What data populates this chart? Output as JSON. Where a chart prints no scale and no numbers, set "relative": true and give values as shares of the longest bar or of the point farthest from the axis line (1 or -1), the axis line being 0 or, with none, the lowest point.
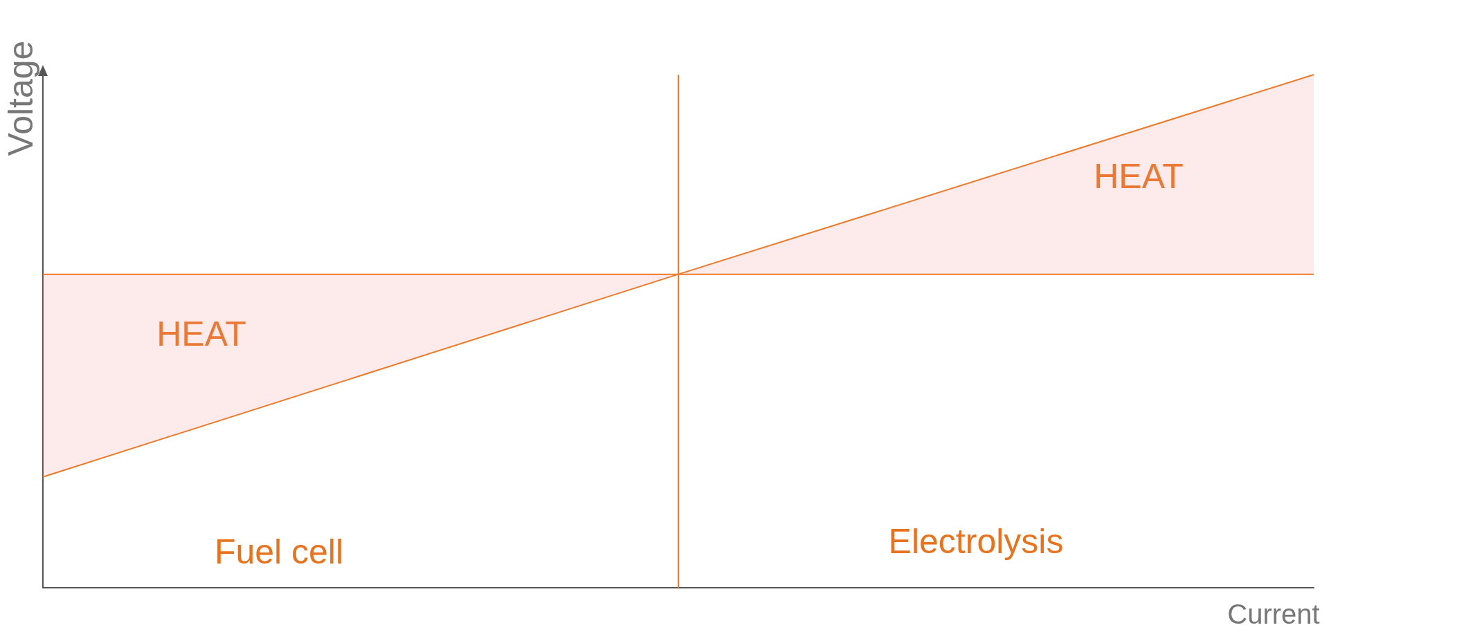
{
  "chart_data": {
    "type": "line",
    "relative": true,
    "xlabel": "Current",
    "ylabel": "Voltage",
    "categories": [
      null,
      null,
      null
    ],
    "series": [
      {
        "color": "#ec7a2a",
        "values": [
          0.216,
          0.611,
          1
        ],
        "lower": [
          0.216,
          0.611,
          0.611
        ],
        "upper": [
          0.611,
          0.611,
          1
        ]
      },
      {
        "color": "#ec7a2a",
        "values": [
          0.611,
          0.611,
          0.611
        ]
      }
    ],
    "annotations": [
      "HEAT",
      "HEAT",
      "Fuel cell",
      "Electrolysis"
    ],
    "grid": false,
    "marker": "none",
    "line_style": "solid"
  }
}
